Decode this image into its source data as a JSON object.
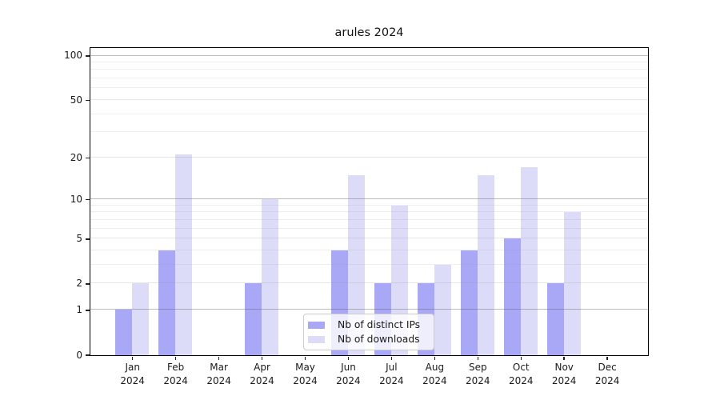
{
  "chart_data": {
    "type": "bar",
    "title": "arules 2024",
    "categories": [
      "Jan",
      "Feb",
      "Mar",
      "Apr",
      "May",
      "Jun",
      "Jul",
      "Aug",
      "Sep",
      "Oct",
      "Nov",
      "Dec"
    ],
    "x_sublabel": "2024",
    "series": [
      {
        "name": "Nb of distinct IPs",
        "color": "#a8a8f6",
        "values": [
          1,
          4,
          0,
          2,
          0,
          4,
          2,
          2,
          4,
          5,
          2,
          0
        ]
      },
      {
        "name": "Nb of downloads",
        "color": "#dcdcf9",
        "values": [
          2,
          21,
          0,
          10,
          0,
          15,
          9,
          3,
          15,
          17,
          8,
          0
        ]
      }
    ],
    "y_ticks": [
      0,
      1,
      2,
      5,
      10,
      20,
      50,
      100
    ],
    "y_scale": "log10(1+x)",
    "ylim": [
      0,
      113
    ],
    "xlabel": "",
    "ylabel": "",
    "grid": "on",
    "legend_position": "lower center"
  }
}
